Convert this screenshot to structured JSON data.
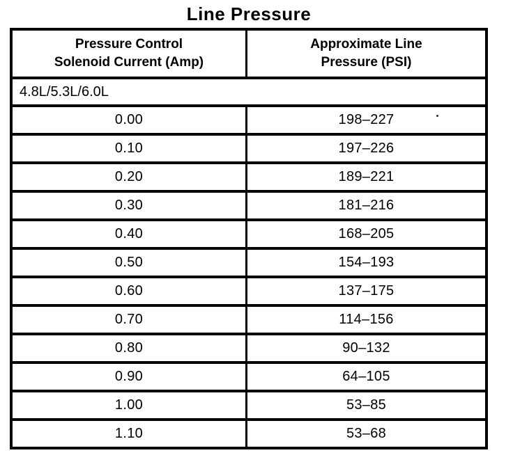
{
  "title": "Line Pressure",
  "table": {
    "columns": [
      {
        "line1": "Pressure Control",
        "line2": "Solenoid Current (Amp)"
      },
      {
        "line1": "Approximate Line",
        "line2": "Pressure (PSI)"
      }
    ],
    "engine_variants": "4.8L/5.3L/6.0L",
    "rows": [
      {
        "current": "0.00",
        "pressure": "198–227"
      },
      {
        "current": "0.10",
        "pressure": "197–226"
      },
      {
        "current": "0.20",
        "pressure": "189–221"
      },
      {
        "current": "0.30",
        "pressure": "181–216"
      },
      {
        "current": "0.40",
        "pressure": "168–205"
      },
      {
        "current": "0.50",
        "pressure": "154–193"
      },
      {
        "current": "0.60",
        "pressure": "137–175"
      },
      {
        "current": "0.70",
        "pressure": "114–156"
      },
      {
        "current": "0.80",
        "pressure": "90–132"
      },
      {
        "current": "0.90",
        "pressure": "64–105"
      },
      {
        "current": "1.00",
        "pressure": "53–85"
      },
      {
        "current": "1.10",
        "pressure": "53–68"
      }
    ]
  }
}
